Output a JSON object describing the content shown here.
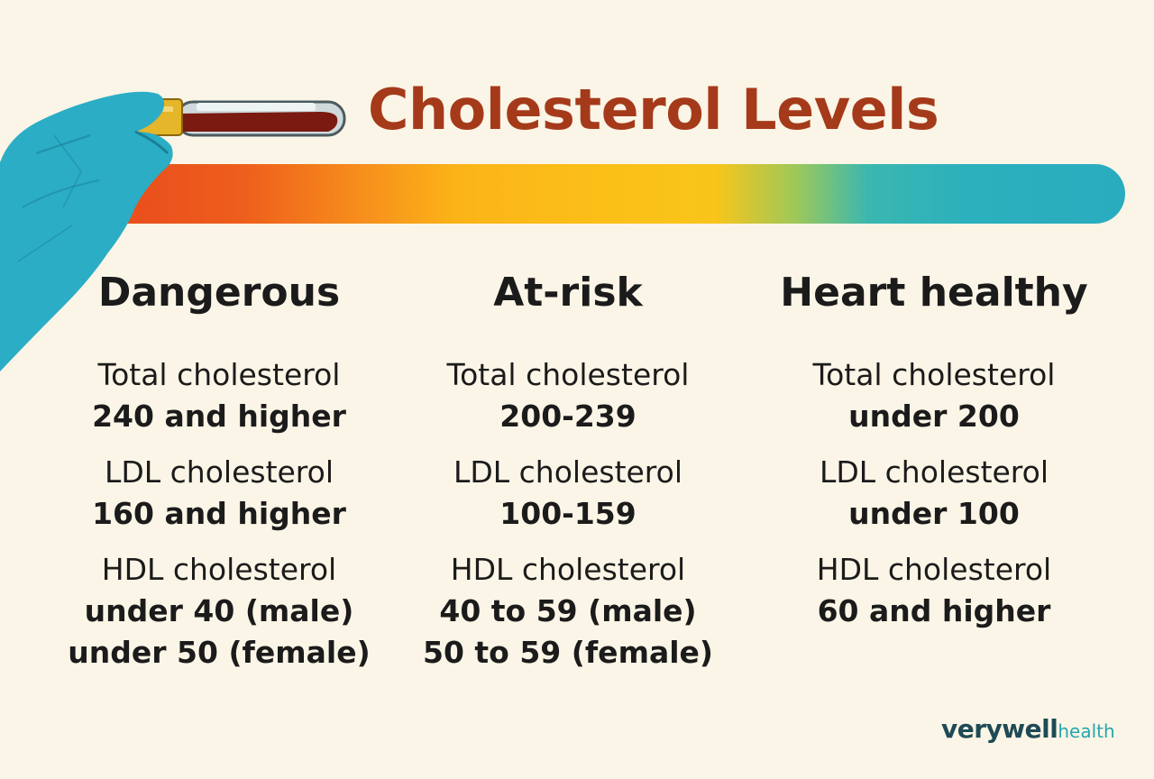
{
  "title": "Cholesterol Levels",
  "colors": {
    "title": "#a53a1a",
    "background": "#faf5e6",
    "glove": "#2badc6",
    "tube_blood": "#7a1a10",
    "tube_cap": "#e5b52a",
    "gradient": [
      "#e84a1c",
      "#f7901c",
      "#fbc018",
      "#2bb0bd"
    ]
  },
  "icons": {
    "hand": "gloved-hand-icon",
    "tube": "blood-test-tube-icon"
  },
  "columns": [
    {
      "heading": "Dangerous",
      "total_label": "Total cholesterol",
      "total_value": "240 and higher",
      "ldl_label": "LDL cholesterol",
      "ldl_value": "160 and higher",
      "hdl_label": "HDL cholesterol",
      "hdl_value_1": "under 40 (male)",
      "hdl_value_2": "under 50 (female)"
    },
    {
      "heading": "At-risk",
      "total_label": "Total cholesterol",
      "total_value": "200-239",
      "ldl_label": "LDL cholesterol",
      "ldl_value": "100-159",
      "hdl_label": "HDL cholesterol",
      "hdl_value_1": "40 to 59 (male)",
      "hdl_value_2": "50 to 59 (female)"
    },
    {
      "heading": "Heart healthy",
      "total_label": "Total cholesterol",
      "total_value": "under 200",
      "ldl_label": "LDL cholesterol",
      "ldl_value": "under 100",
      "hdl_label": "HDL cholesterol",
      "hdl_value_1": "60 and higher",
      "hdl_value_2": ""
    }
  ],
  "logo": {
    "brand": "verywell",
    "sub": "health"
  }
}
